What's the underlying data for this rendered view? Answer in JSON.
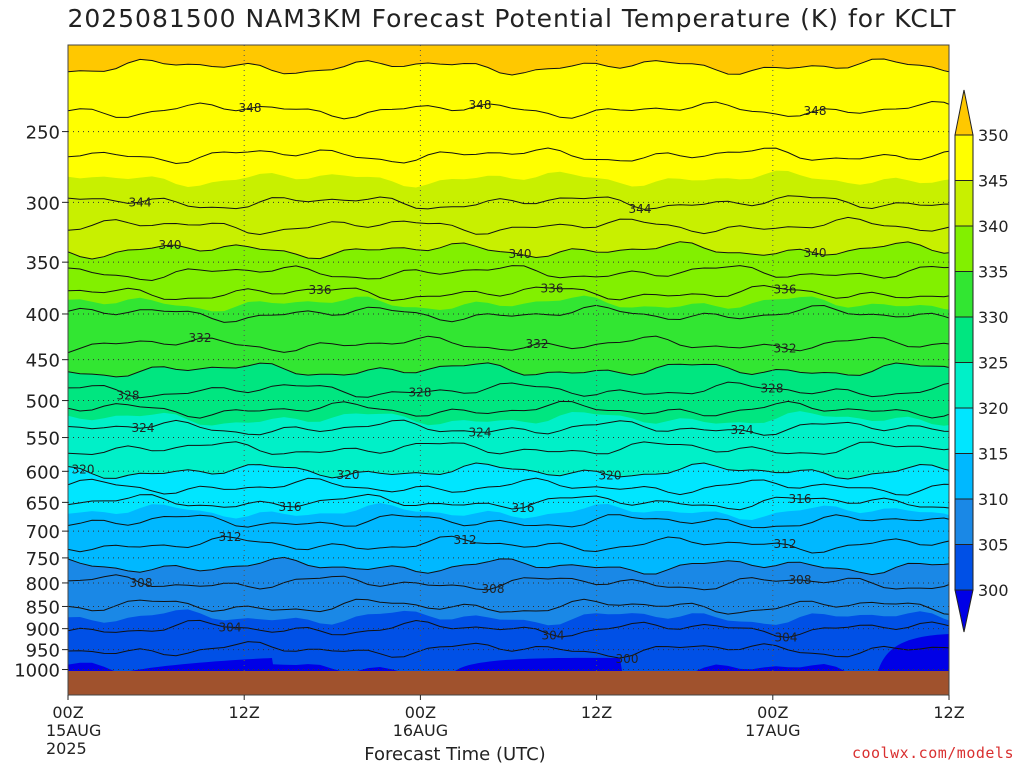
{
  "title": "2025081500 NAM3KM Forecast Potential Temperature (K) for KCLT",
  "credit": "coolwx.com/models",
  "chart_data": {
    "type": "heatmap",
    "title": "2025081500 NAM3KM Forecast Potential Temperature (K) for KCLT",
    "xlabel": "Forecast Time (UTC)",
    "ylabel": "",
    "x_ticks": [
      {
        "hour": 0,
        "lines": [
          "00Z",
          "15AUG",
          "2025"
        ]
      },
      {
        "hour": 12,
        "lines": [
          "12Z"
        ]
      },
      {
        "hour": 24,
        "lines": [
          "00Z",
          "16AUG"
        ]
      },
      {
        "hour": 36,
        "lines": [
          "12Z"
        ]
      },
      {
        "hour": 48,
        "lines": [
          "00Z",
          "17AUG"
        ]
      },
      {
        "hour": 60,
        "lines": [
          "12Z"
        ]
      }
    ],
    "xlim_hours": [
      0,
      60
    ],
    "y_axis": "pressure (hPa), log scale",
    "ylim": [
      1030,
      200
    ],
    "y_ticks": [
      1000,
      950,
      900,
      850,
      800,
      750,
      700,
      650,
      600,
      550,
      500,
      450,
      400,
      350,
      300,
      250
    ],
    "colorbar": {
      "levels": [
        300,
        305,
        310,
        315,
        320,
        325,
        330,
        335,
        340,
        345,
        350
      ],
      "colors": [
        "#0000e6",
        "#0050e6",
        "#1a88e6",
        "#00b8ff",
        "#00e6ff",
        "#00f0c8",
        "#00e680",
        "#32e632",
        "#82f000",
        "#c8f000",
        "#ffff00",
        "#ffc800"
      ],
      "extend": "both"
    },
    "ground_color": "#a0522d",
    "contour_labels_visible": [
      {
        "label": "348",
        "row": 1
      },
      {
        "label": "344",
        "row": 3
      },
      {
        "label": "340",
        "row": 5
      },
      {
        "label": "336",
        "row": 6
      },
      {
        "label": "332",
        "row": 7
      },
      {
        "label": "328",
        "row": 8
      },
      {
        "label": "324",
        "row": 9
      },
      {
        "label": "320",
        "row": 10
      },
      {
        "label": "316",
        "row": 11
      },
      {
        "label": "312",
        "row": 12
      },
      {
        "label": "308",
        "row": 13
      },
      {
        "label": "304",
        "row": 14
      },
      {
        "label": "300",
        "row": 15
      }
    ],
    "theta_profile_k": [
      {
        "p": 1000,
        "theta": 300
      },
      {
        "p": 950,
        "theta": 302
      },
      {
        "p": 900,
        "theta": 304
      },
      {
        "p": 850,
        "theta": 306
      },
      {
        "p": 800,
        "theta": 308
      },
      {
        "p": 750,
        "theta": 311
      },
      {
        "p": 700,
        "theta": 313
      },
      {
        "p": 650,
        "theta": 316
      },
      {
        "p": 600,
        "theta": 320
      },
      {
        "p": 550,
        "theta": 323
      },
      {
        "p": 500,
        "theta": 327
      },
      {
        "p": 450,
        "theta": 331
      },
      {
        "p": 400,
        "theta": 334
      },
      {
        "p": 350,
        "theta": 339
      },
      {
        "p": 300,
        "theta": 344
      },
      {
        "p": 250,
        "theta": 347
      },
      {
        "p": 200,
        "theta": 351
      }
    ],
    "grid": true,
    "legend": "right (colorbar)"
  }
}
